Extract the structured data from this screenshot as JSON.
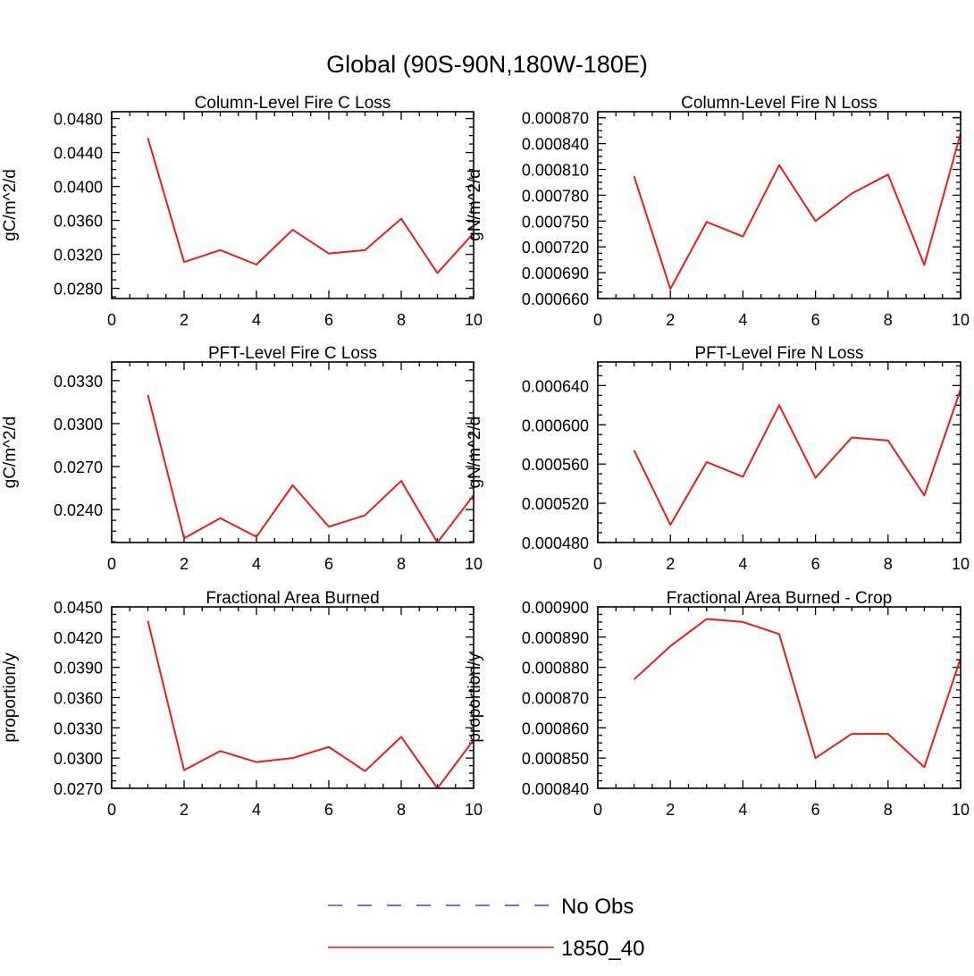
{
  "figure": {
    "title": "Global (90S-90N,180W-180E)"
  },
  "colors": {
    "series_line": "#e81c1c",
    "obs_line": "#3f3fe0",
    "axis": "#000000"
  },
  "legend": {
    "placement": "bottom-center",
    "entries": [
      {
        "label": "No Obs",
        "style": "dashed",
        "color": "#3f3fe0"
      },
      {
        "label": "1850_40",
        "style": "solid",
        "color": "#e81c1c"
      }
    ]
  },
  "chart_data": [
    {
      "type": "line",
      "title": "Column-Level Fire C Loss",
      "xlabel": "",
      "ylabel": "gC/m^2/d",
      "xlim": [
        0,
        10
      ],
      "ylim": [
        0.0268,
        0.0488
      ],
      "xticks": [
        0,
        2,
        4,
        6,
        8,
        10
      ],
      "xtick_labels": [
        "0",
        "2",
        "4",
        "6",
        "8",
        "10"
      ],
      "yticks": [
        0.028,
        0.032,
        0.036,
        0.04,
        0.044,
        0.048
      ],
      "ytick_labels": [
        "0.0280",
        "0.0320",
        "0.0360",
        "0.0400",
        "0.0440",
        "0.0480"
      ],
      "series": [
        {
          "name": "1850_40",
          "x": [
            1,
            2,
            3,
            4,
            5,
            6,
            7,
            8,
            9,
            10
          ],
          "values": [
            0.0457,
            0.0311,
            0.0325,
            0.0308,
            0.0349,
            0.0321,
            0.0325,
            0.0362,
            0.0298,
            0.0345
          ]
        }
      ]
    },
    {
      "type": "line",
      "title": "Column-Level Fire N Loss",
      "xlabel": "",
      "ylabel": "gN/m^2/d",
      "xlim": [
        0,
        10
      ],
      "ylim": [
        0.00066,
        0.000877
      ],
      "xticks": [
        0,
        2,
        4,
        6,
        8,
        10
      ],
      "xtick_labels": [
        "0",
        "2",
        "4",
        "6",
        "8",
        "10"
      ],
      "yticks": [
        0.00066,
        0.00069,
        0.00072,
        0.00075,
        0.00078,
        0.00081,
        0.00084,
        0.00087
      ],
      "ytick_labels": [
        "0.000660",
        "0.000690",
        "0.000720",
        "0.000750",
        "0.000780",
        "0.000810",
        "0.000840",
        "0.000870"
      ],
      "series": [
        {
          "name": "1850_40",
          "x": [
            1,
            2,
            3,
            4,
            5,
            6,
            7,
            8,
            9,
            10
          ],
          "values": [
            0.000802,
            0.000671,
            0.000749,
            0.000732,
            0.000815,
            0.00075,
            0.000782,
            0.000804,
            0.000699,
            0.000852
          ]
        }
      ]
    },
    {
      "type": "line",
      "title": "PFT-Level Fire C Loss",
      "xlabel": "",
      "ylabel": "gC/m^2/d",
      "xlim": [
        0,
        10
      ],
      "ylim": [
        0.0217,
        0.0343
      ],
      "xticks": [
        0,
        2,
        4,
        6,
        8,
        10
      ],
      "xtick_labels": [
        "0",
        "2",
        "4",
        "6",
        "8",
        "10"
      ],
      "yticks": [
        0.024,
        0.027,
        0.03,
        0.033
      ],
      "ytick_labels": [
        "0.0240",
        "0.0270",
        "0.0300",
        "0.0330"
      ],
      "series": [
        {
          "name": "1850_40",
          "x": [
            1,
            2,
            3,
            4,
            5,
            6,
            7,
            8,
            9,
            10
          ],
          "values": [
            0.032,
            0.022,
            0.0234,
            0.0221,
            0.0257,
            0.0228,
            0.0236,
            0.026,
            0.0217,
            0.025
          ]
        }
      ]
    },
    {
      "type": "line",
      "title": "PFT-Level Fire N Loss",
      "xlabel": "",
      "ylabel": "gN/m^2/d",
      "xlim": [
        0,
        10
      ],
      "ylim": [
        0.00048,
        0.000664
      ],
      "xticks": [
        0,
        2,
        4,
        6,
        8,
        10
      ],
      "xtick_labels": [
        "0",
        "2",
        "4",
        "6",
        "8",
        "10"
      ],
      "yticks": [
        0.00048,
        0.00052,
        0.00056,
        0.0006,
        0.00064
      ],
      "ytick_labels": [
        "0.000480",
        "0.000520",
        "0.000560",
        "0.000600",
        "0.000640"
      ],
      "series": [
        {
          "name": "1850_40",
          "x": [
            1,
            2,
            3,
            4,
            5,
            6,
            7,
            8,
            9,
            10
          ],
          "values": [
            0.000574,
            0.000498,
            0.000562,
            0.000547,
            0.00062,
            0.000546,
            0.000587,
            0.000584,
            0.000528,
            0.000636
          ]
        }
      ]
    },
    {
      "type": "line",
      "title": "Fractional Area Burned",
      "xlabel": "",
      "ylabel": "proportion/y",
      "xlim": [
        0,
        10
      ],
      "ylim": [
        0.027,
        0.045
      ],
      "xticks": [
        0,
        2,
        4,
        6,
        8,
        10
      ],
      "xtick_labels": [
        "0",
        "2",
        "4",
        "6",
        "8",
        "10"
      ],
      "yticks": [
        0.027,
        0.03,
        0.033,
        0.036,
        0.039,
        0.042,
        0.045
      ],
      "ytick_labels": [
        "0.0270",
        "0.0300",
        "0.0330",
        "0.0360",
        "0.0390",
        "0.0420",
        "0.0450"
      ],
      "series": [
        {
          "name": "1850_40",
          "x": [
            1,
            2,
            3,
            4,
            5,
            6,
            7,
            8,
            9,
            10
          ],
          "values": [
            0.0436,
            0.0288,
            0.0307,
            0.0296,
            0.03,
            0.0311,
            0.0287,
            0.0321,
            0.027,
            0.0318
          ]
        }
      ]
    },
    {
      "type": "line",
      "title": "Fractional Area Burned - Crop",
      "xlabel": "",
      "ylabel": "proportion/y",
      "xlim": [
        0,
        10
      ],
      "ylim": [
        0.00084,
        0.0009
      ],
      "xticks": [
        0,
        2,
        4,
        6,
        8,
        10
      ],
      "xtick_labels": [
        "0",
        "2",
        "4",
        "6",
        "8",
        "10"
      ],
      "yticks": [
        0.00084,
        0.00085,
        0.00086,
        0.00087,
        0.00088,
        0.00089,
        0.0009
      ],
      "ytick_labels": [
        "0.000840",
        "0.000850",
        "0.000860",
        "0.000870",
        "0.000880",
        "0.000890",
        "0.000900"
      ],
      "series": [
        {
          "name": "1850_40",
          "x": [
            1,
            2,
            3,
            4,
            5,
            6,
            7,
            8,
            9,
            10
          ],
          "values": [
            0.000876,
            0.000887,
            0.000896,
            0.000895,
            0.000891,
            0.00085,
            0.000858,
            0.000858,
            0.000847,
            0.000883
          ]
        }
      ]
    }
  ]
}
